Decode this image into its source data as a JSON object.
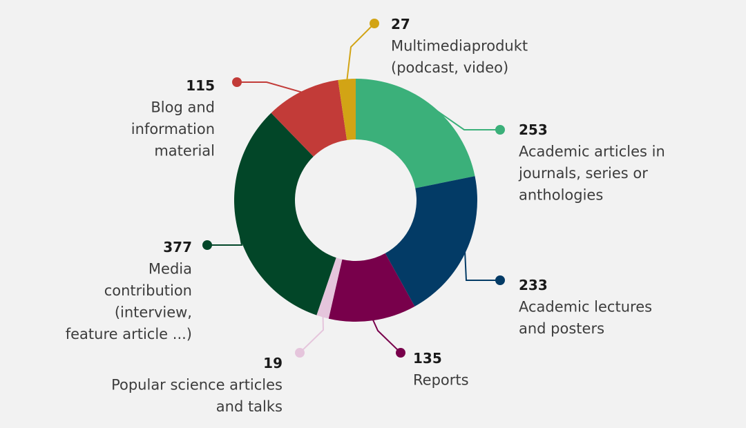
{
  "chart_data": {
    "type": "pie",
    "variant": "donut",
    "start": "top, clockwise",
    "slices": [
      {
        "value": 253,
        "label": "Academic articles in journals, series or anthologies",
        "label_lines": [
          "Academic articles in",
          "journals, series or",
          "anthologies"
        ],
        "color": "#3bb07a"
      },
      {
        "value": 233,
        "label": "Academic lectures and posters",
        "label_lines": [
          "Academic lectures",
          "and posters"
        ],
        "color": "#033b66"
      },
      {
        "value": 135,
        "label": "Reports",
        "label_lines": [
          "Reports"
        ],
        "color": "#78004b"
      },
      {
        "value": 19,
        "label": "Popular science articles and talks",
        "label_lines": [
          "Popular science articles",
          "and talks"
        ],
        "color": "#e5c5dc"
      },
      {
        "value": 377,
        "label": "Media contribution (interview, feature article ...)",
        "label_lines": [
          "Media",
          "contribution",
          "(interview,",
          "feature article ...)"
        ],
        "color": "#024628"
      },
      {
        "value": 115,
        "label": "Blog and information material",
        "label_lines": [
          "Blog and",
          "information",
          "material"
        ],
        "color": "#c23b38"
      },
      {
        "value": 27,
        "label": "Multimediaprodukt (podcast, video)",
        "label_lines": [
          "Multimediaprodukt",
          "(podcast, video)"
        ],
        "color": "#d2a415"
      }
    ]
  }
}
